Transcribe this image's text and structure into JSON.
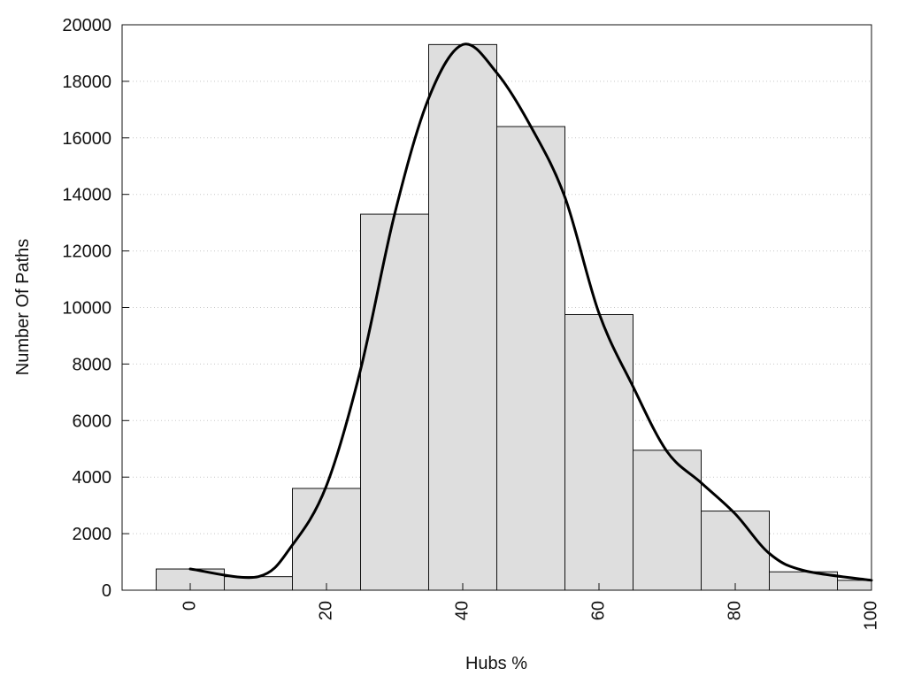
{
  "chart_data": {
    "type": "bar",
    "title": "",
    "xlabel": "Hubs %",
    "ylabel": "Number Of Paths",
    "xlim": [
      -10,
      100
    ],
    "ylim": [
      0,
      20000
    ],
    "x_ticks": [
      0,
      20,
      40,
      60,
      80,
      100
    ],
    "y_ticks": [
      0,
      2000,
      4000,
      6000,
      8000,
      10000,
      12000,
      14000,
      16000,
      18000,
      20000
    ],
    "bin_width": 10,
    "bins": [
      {
        "x": 0,
        "value": 750
      },
      {
        "x": 10,
        "value": 480
      },
      {
        "x": 20,
        "value": 3600
      },
      {
        "x": 30,
        "value": 13300
      },
      {
        "x": 40,
        "value": 19300
      },
      {
        "x": 50,
        "value": 16400
      },
      {
        "x": 60,
        "value": 9750
      },
      {
        "x": 70,
        "value": 4950
      },
      {
        "x": 80,
        "value": 2800
      },
      {
        "x": 90,
        "value": 650
      },
      {
        "x": 100,
        "value": 350
      }
    ],
    "curve": [
      {
        "x": 0,
        "y": 750
      },
      {
        "x": 10,
        "y": 480
      },
      {
        "x": 15,
        "y": 1600
      },
      {
        "x": 20,
        "y": 3700
      },
      {
        "x": 25,
        "y": 7800
      },
      {
        "x": 30,
        "y": 13300
      },
      {
        "x": 35,
        "y": 17400
      },
      {
        "x": 40,
        "y": 19300
      },
      {
        "x": 45,
        "y": 18300
      },
      {
        "x": 50,
        "y": 16400
      },
      {
        "x": 55,
        "y": 13900
      },
      {
        "x": 60,
        "y": 9800
      },
      {
        "x": 65,
        "y": 7200
      },
      {
        "x": 70,
        "y": 4900
      },
      {
        "x": 75,
        "y": 3800
      },
      {
        "x": 80,
        "y": 2700
      },
      {
        "x": 85,
        "y": 1300
      },
      {
        "x": 90,
        "y": 700
      },
      {
        "x": 100,
        "y": 350
      }
    ],
    "grid": "horizontal dotted",
    "colors": {
      "bar_fill": "#dedede",
      "bar_stroke": "#111111",
      "curve": "#000000",
      "grid": "#c8c8c8",
      "frame": "#111111"
    }
  }
}
